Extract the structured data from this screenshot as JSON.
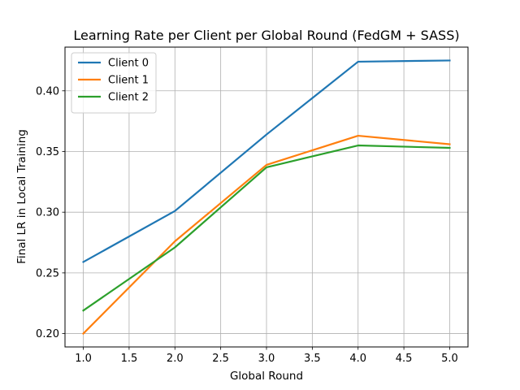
{
  "chart_data": {
    "type": "line",
    "title": "Learning Rate per Client per Global Round (FedGM + SASS)",
    "xlabel": "Global Round",
    "ylabel": "Final LR in Local Training",
    "x": [
      1.0,
      2.0,
      3.0,
      4.0,
      5.0
    ],
    "xlim": [
      0.8,
      5.2
    ],
    "ylim": [
      0.189,
      0.436
    ],
    "xticks": [
      1.0,
      1.5,
      2.0,
      2.5,
      3.0,
      3.5,
      4.0,
      4.5,
      5.0
    ],
    "xtick_labels": [
      "1.0",
      "1.5",
      "2.0",
      "2.5",
      "3.0",
      "3.5",
      "4.0",
      "4.5",
      "5.0"
    ],
    "yticks": [
      0.2,
      0.25,
      0.3,
      0.35,
      0.4
    ],
    "ytick_labels": [
      "0.20",
      "0.25",
      "0.30",
      "0.35",
      "0.40"
    ],
    "grid": true,
    "legend_position": "top-left",
    "series": [
      {
        "name": "Client 0",
        "color": "#1f77b4",
        "values": [
          0.259,
          0.301,
          0.364,
          0.424,
          0.425
        ]
      },
      {
        "name": "Client 1",
        "color": "#ff7f0e",
        "values": [
          0.2,
          0.276,
          0.339,
          0.363,
          0.356
        ]
      },
      {
        "name": "Client 2",
        "color": "#2ca02c",
        "values": [
          0.219,
          0.271,
          0.337,
          0.355,
          0.353
        ]
      }
    ]
  }
}
